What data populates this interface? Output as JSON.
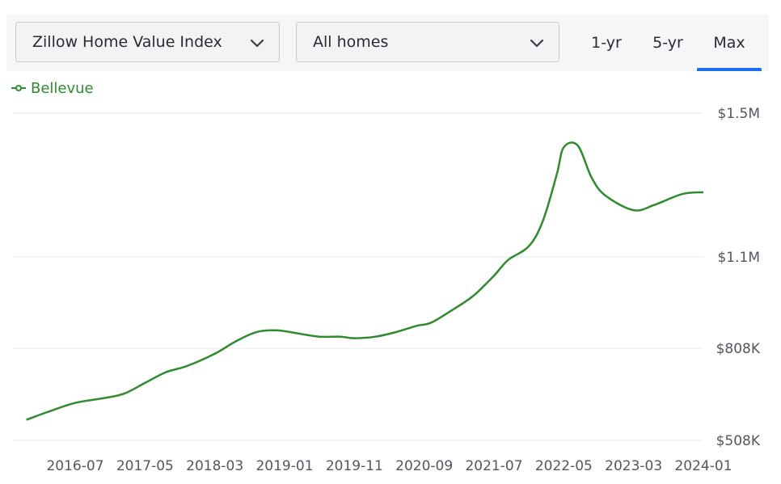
{
  "controls": {
    "metric_select": "Zillow Home Value Index",
    "home_type_select": "All homes",
    "range_tabs": [
      "1-yr",
      "5-yr",
      "Max"
    ],
    "active_tab": "Max",
    "accent_color": "#1a6dec"
  },
  "icons": {
    "dropdown": "chevron-down-icon",
    "legend_marker": "line-with-circle-icon"
  },
  "chart_data": {
    "type": "line",
    "series": [
      {
        "name": "Bellevue",
        "color": "#2e8b2e",
        "points": [
          [
            "2015-12",
            575000
          ],
          [
            "2016-03",
            600000
          ],
          [
            "2016-07",
            630000
          ],
          [
            "2016-11",
            645000
          ],
          [
            "2017-02",
            660000
          ],
          [
            "2017-05",
            695000
          ],
          [
            "2017-08",
            730000
          ],
          [
            "2017-11",
            750000
          ],
          [
            "2018-03",
            790000
          ],
          [
            "2018-06",
            830000
          ],
          [
            "2018-09",
            860000
          ],
          [
            "2018-12",
            865000
          ],
          [
            "2019-03",
            855000
          ],
          [
            "2019-06",
            845000
          ],
          [
            "2019-09",
            845000
          ],
          [
            "2019-11",
            840000
          ],
          [
            "2020-02",
            845000
          ],
          [
            "2020-05",
            860000
          ],
          [
            "2020-08",
            880000
          ],
          [
            "2020-10",
            890000
          ],
          [
            "2021-01",
            930000
          ],
          [
            "2021-04",
            975000
          ],
          [
            "2021-07",
            1040000
          ],
          [
            "2021-09",
            1090000
          ],
          [
            "2021-12",
            1130000
          ],
          [
            "2022-02",
            1200000
          ],
          [
            "2022-04",
            1330000
          ],
          [
            "2022-05",
            1405000
          ],
          [
            "2022-07",
            1410000
          ],
          [
            "2022-09",
            1320000
          ],
          [
            "2022-11",
            1270000
          ],
          [
            "2023-03",
            1230000
          ],
          [
            "2023-06",
            1245000
          ],
          [
            "2023-10",
            1275000
          ],
          [
            "2024-01",
            1280000
          ]
        ]
      }
    ],
    "x_ticks": [
      "2016-07",
      "2017-05",
      "2018-03",
      "2019-01",
      "2019-11",
      "2020-09",
      "2021-07",
      "2022-05",
      "2023-03",
      "2024-01"
    ],
    "y_ticks": [
      {
        "value": 1500000,
        "label": "$1.5M"
      },
      {
        "value": 1100000,
        "label": "$1.1M"
      },
      {
        "value": 808000,
        "label": "$808K"
      },
      {
        "value": 508000,
        "label": "$508K"
      }
    ],
    "y_axis_position": "right",
    "grid": true
  }
}
